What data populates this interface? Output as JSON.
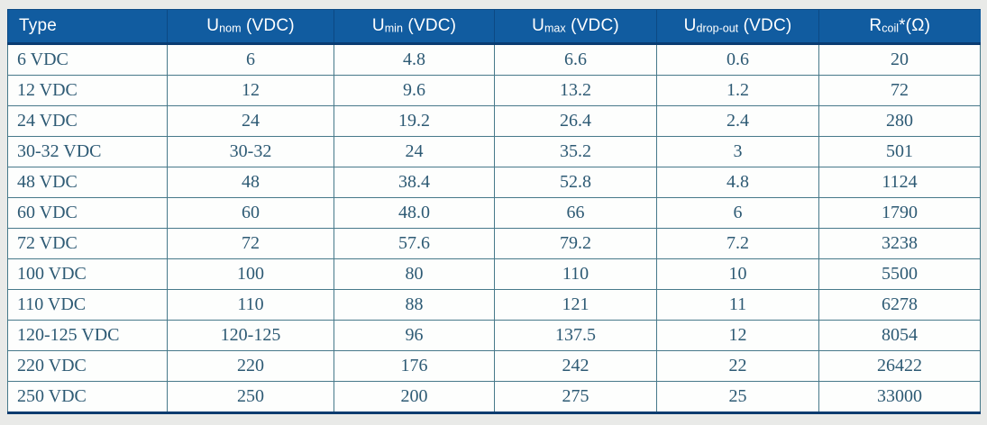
{
  "style": {
    "page_background": "#e9eae8",
    "header_background": "#115ca0",
    "header_text_color": "#ffffff",
    "header_divider_color": "#0c4984",
    "header_bottom_border_color": "#0a3c72",
    "grid_color": "#47798a",
    "cell_text_color": "#2d5a74",
    "cell_background": "#fdfefd",
    "outer_bottom_border_color": "#0b3b6f"
  },
  "chart_data": {
    "type": "table",
    "columns": [
      {
        "base": "Type",
        "sub": "",
        "suffix": ""
      },
      {
        "base": "U",
        "sub": "nom",
        "suffix": " (VDC)"
      },
      {
        "base": "U",
        "sub": "min",
        "suffix": " (VDC)"
      },
      {
        "base": "U",
        "sub": "max",
        "suffix": " (VDC)"
      },
      {
        "base": "U",
        "sub": "drop-out",
        "suffix": " (VDC)"
      },
      {
        "base": "R",
        "sub": "coil",
        "suffix": "*(Ω)"
      }
    ],
    "rows": [
      [
        "6 VDC",
        "6",
        "4.8",
        "6.6",
        "0.6",
        "20"
      ],
      [
        "12 VDC",
        "12",
        "9.6",
        "13.2",
        "1.2",
        "72"
      ],
      [
        "24 VDC",
        "24",
        "19.2",
        "26.4",
        "2.4",
        "280"
      ],
      [
        "30-32 VDC",
        "30-32",
        "24",
        "35.2",
        "3",
        "501"
      ],
      [
        "48 VDC",
        "48",
        "38.4",
        "52.8",
        "4.8",
        "1124"
      ],
      [
        "60 VDC",
        "60",
        "48.0",
        "66",
        "6",
        "1790"
      ],
      [
        "72 VDC",
        "72",
        "57.6",
        "79.2",
        "7.2",
        "3238"
      ],
      [
        "100 VDC",
        "100",
        "80",
        "110",
        "10",
        "5500"
      ],
      [
        "110 VDC",
        "110",
        "88",
        "121",
        "11",
        "6278"
      ],
      [
        "120-125 VDC",
        "120-125",
        "96",
        "137.5",
        "12",
        "8054"
      ],
      [
        "220 VDC",
        "220",
        "176",
        "242",
        "22",
        "26422"
      ],
      [
        "250 VDC",
        "250",
        "200",
        "275",
        "25",
        "33000"
      ]
    ]
  }
}
